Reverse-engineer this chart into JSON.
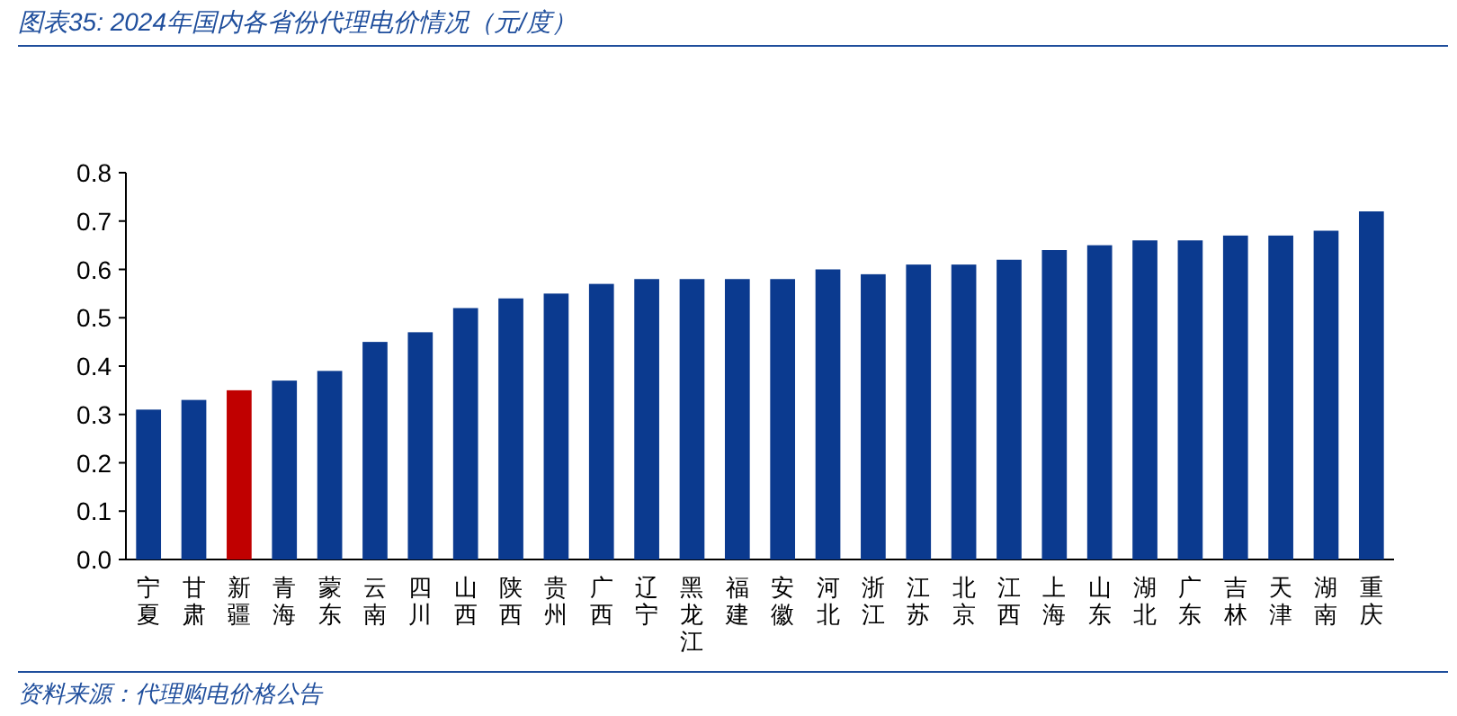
{
  "chart_data": {
    "type": "bar",
    "title": "图表35:  2024年国内各省份代理电价情况（元/度）",
    "categories": [
      "宁夏",
      "甘肃",
      "新疆",
      "青海",
      "蒙东",
      "云南",
      "四川",
      "山西",
      "陕西",
      "贵州",
      "广西",
      "辽宁",
      "黑龙江",
      "福建",
      "安徽",
      "河北",
      "浙江",
      "江苏",
      "北京",
      "江西",
      "上海",
      "山东",
      "湖北",
      "广东",
      "吉林",
      "天津",
      "湖南",
      "重庆"
    ],
    "values": [
      0.31,
      0.33,
      0.35,
      0.37,
      0.39,
      0.45,
      0.47,
      0.52,
      0.54,
      0.55,
      0.57,
      0.58,
      0.58,
      0.58,
      0.58,
      0.6,
      0.59,
      0.61,
      0.61,
      0.62,
      0.64,
      0.65,
      0.66,
      0.66,
      0.67,
      0.67,
      0.68,
      0.72
    ],
    "colors": [
      "#0b3a8f",
      "#0b3a8f",
      "#c00000",
      "#0b3a8f",
      "#0b3a8f",
      "#0b3a8f",
      "#0b3a8f",
      "#0b3a8f",
      "#0b3a8f",
      "#0b3a8f",
      "#0b3a8f",
      "#0b3a8f",
      "#0b3a8f",
      "#0b3a8f",
      "#0b3a8f",
      "#0b3a8f",
      "#0b3a8f",
      "#0b3a8f",
      "#0b3a8f",
      "#0b3a8f",
      "#0b3a8f",
      "#0b3a8f",
      "#0b3a8f",
      "#0b3a8f",
      "#0b3a8f",
      "#0b3a8f",
      "#0b3a8f",
      "#0b3a8f"
    ],
    "ylim": [
      0,
      0.8
    ],
    "yticks": [
      {
        "value": 0,
        "label": "0.0"
      },
      0.1,
      0.2,
      0.3,
      0.4,
      0.5,
      0.6,
      0.7,
      0.8
    ],
    "annotations": [
      "资料来源：代理购电价格公告"
    ]
  }
}
